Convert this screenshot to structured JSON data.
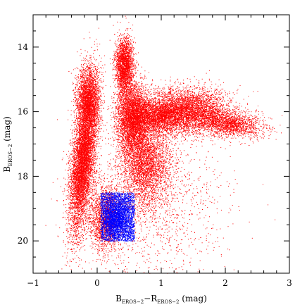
{
  "chart_data": {
    "type": "scatter",
    "title": "",
    "xlabel": {
      "base1": "B",
      "sub1": "EROS−2",
      "mid": "−R",
      "sub2": "EROS−2",
      "unit": " (mag)"
    },
    "ylabel": {
      "base": "B",
      "sub": "EROS−2",
      "unit": " (mag)"
    },
    "xlim": [
      -1,
      3
    ],
    "ylim": [
      21,
      13
    ],
    "y_inverted": true,
    "x_major_ticks": [
      -1,
      0,
      1,
      2,
      3
    ],
    "x_tick_labels": [
      "−1",
      "0",
      "1",
      "2",
      "3"
    ],
    "y_major_ticks": [
      14,
      16,
      18,
      20
    ],
    "y_tick_labels": [
      "14",
      "16",
      "18",
      "20"
    ],
    "grid": false,
    "series": [
      {
        "color": "#ff0000",
        "density_components": [
          {
            "x": -0.22,
            "y": 17.5,
            "sx": 0.09,
            "sy": 1.1,
            "weight": 0.22,
            "tilt": -0.05
          },
          {
            "x": -0.15,
            "y": 15.6,
            "sx": 0.09,
            "sy": 0.5,
            "weight": 0.08,
            "tilt": 0.0
          },
          {
            "x": 0.12,
            "y": 19.3,
            "sx": 0.12,
            "sy": 0.5,
            "weight": 0.06,
            "tilt": 0.0
          },
          {
            "x": 0.42,
            "y": 14.6,
            "sx": 0.07,
            "sy": 0.45,
            "weight": 0.08,
            "tilt": 0.0
          },
          {
            "x": 0.55,
            "y": 16.2,
            "sx": 0.12,
            "sy": 0.55,
            "weight": 0.12,
            "tilt": 0.0
          },
          {
            "x": 0.75,
            "y": 17.6,
            "sx": 0.2,
            "sy": 0.7,
            "weight": 0.12,
            "tilt": 0.0
          },
          {
            "x": 0.95,
            "y": 16.1,
            "sx": 0.25,
            "sy": 0.3,
            "weight": 0.1,
            "tilt": 0.0
          },
          {
            "x": 1.45,
            "y": 15.95,
            "sx": 0.3,
            "sy": 0.35,
            "weight": 0.12,
            "tilt": 0.0
          },
          {
            "x": 2.05,
            "y": 16.35,
            "sx": 0.25,
            "sy": 0.2,
            "weight": 0.06,
            "tilt": 0.35
          },
          {
            "x": 0.9,
            "y": 19.0,
            "sx": 0.6,
            "sy": 1.2,
            "weight": 0.04,
            "tilt": 0.0
          }
        ],
        "n_points": 30000
      },
      {
        "color": "#0000ff",
        "region": {
          "x": [
            0.05,
            0.58
          ],
          "y": [
            18.5,
            20.0
          ]
        },
        "peak": {
          "x": 0.3,
          "y": 19.3
        },
        "n_points": 4200
      }
    ]
  }
}
